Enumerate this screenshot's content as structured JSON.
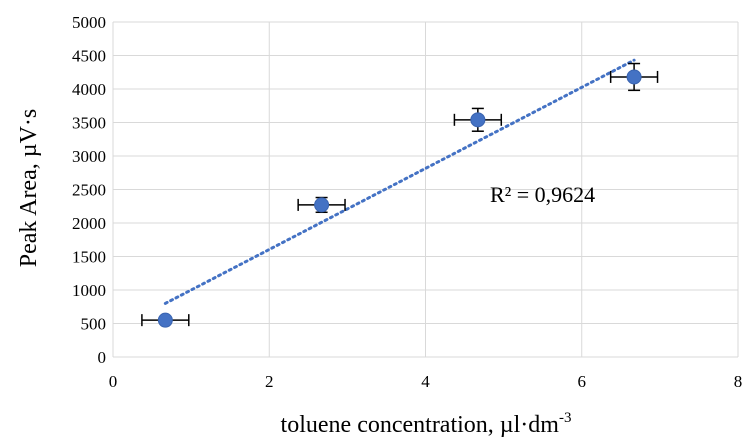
{
  "chart_data": {
    "type": "scatter",
    "xlabel": "toluene concentration, µl·dm",
    "xlabel_superscript": "-3",
    "ylabel": "Peak Area, µV·s",
    "xlim": [
      0,
      8
    ],
    "ylim": [
      0,
      5000
    ],
    "x_ticks": [
      "0",
      "2",
      "4",
      "6",
      "8"
    ],
    "y_ticks": [
      "0",
      "500",
      "1000",
      "1500",
      "2000",
      "2500",
      "3000",
      "3500",
      "4000",
      "4500",
      "5000"
    ],
    "grid": true,
    "points": [
      {
        "x": 0.67,
        "y": 550,
        "x_err": 0.3,
        "y_err": 0
      },
      {
        "x": 2.67,
        "y": 2270,
        "x_err": 0.3,
        "y_err": 110
      },
      {
        "x": 4.67,
        "y": 3540,
        "x_err": 0.3,
        "y_err": 170
      },
      {
        "x": 6.67,
        "y": 4180,
        "x_err": 0.3,
        "y_err": 200
      }
    ],
    "trendline": {
      "type": "linear",
      "x_start": 0.67,
      "y_start": 800,
      "x_end": 6.67,
      "y_end": 4430,
      "style": "dotted"
    },
    "annotation": "R² = 0,9624",
    "colors": {
      "marker": "#4472C4",
      "trendline": "#4472C4",
      "grid": "#d9d9d9",
      "error_bar": "#000000"
    }
  }
}
